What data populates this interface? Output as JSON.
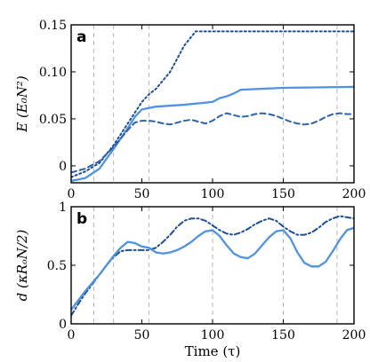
{
  "chart_data": [
    {
      "panel": "a",
      "type": "line",
      "ylabel": "E (E₀N²)",
      "xlabel": "",
      "xlim": [
        0,
        200
      ],
      "ylim": [
        -0.018,
        0.15
      ],
      "xticks": [
        0,
        50,
        100,
        150,
        200
      ],
      "xtick_labels": [
        "0",
        "50",
        "100",
        "150",
        "200"
      ],
      "yticks": [
        0,
        0.05,
        0.1,
        0.15
      ],
      "ytick_labels": [
        "0",
        "0.05",
        "0.10",
        "0.15"
      ],
      "vlines": [
        16,
        30,
        55,
        150,
        188
      ],
      "series": [
        {
          "style": "dotted",
          "color": "#1d4f96",
          "x": [
            0,
            10,
            20,
            30,
            40,
            50,
            55,
            60,
            70,
            80,
            88,
            95,
            100,
            150,
            200
          ],
          "y": [
            -0.012,
            -0.006,
            0.003,
            0.022,
            0.045,
            0.068,
            0.076,
            0.082,
            0.1,
            0.128,
            0.143,
            0.143,
            0.143,
            0.143,
            0.143
          ]
        },
        {
          "style": "solid",
          "color": "#4f92df",
          "x": [
            0,
            10,
            20,
            30,
            40,
            45,
            50,
            60,
            80,
            100,
            105,
            110,
            115,
            120,
            150,
            200
          ],
          "y": [
            -0.016,
            -0.013,
            -0.003,
            0.018,
            0.04,
            0.052,
            0.06,
            0.063,
            0.065,
            0.068,
            0.072,
            0.074,
            0.077,
            0.081,
            0.083,
            0.084
          ]
        },
        {
          "style": "dashed",
          "color": "#2d62ab",
          "x": [
            0,
            10,
            20,
            30,
            40,
            45,
            50,
            55,
            60,
            65,
            70,
            75,
            80,
            85,
            90,
            95,
            100,
            105,
            110,
            115,
            120,
            125,
            130,
            135,
            140,
            145,
            150,
            155,
            160,
            165,
            170,
            175,
            180,
            185,
            190,
            195,
            200
          ],
          "y": [
            -0.007,
            -0.003,
            0.005,
            0.02,
            0.038,
            0.046,
            0.048,
            0.048,
            0.047,
            0.045,
            0.044,
            0.046,
            0.048,
            0.049,
            0.047,
            0.045,
            0.048,
            0.053,
            0.056,
            0.054,
            0.052,
            0.053,
            0.055,
            0.056,
            0.055,
            0.053,
            0.05,
            0.047,
            0.045,
            0.044,
            0.045,
            0.048,
            0.052,
            0.055,
            0.056,
            0.055,
            0.055
          ]
        }
      ]
    },
    {
      "panel": "b",
      "type": "line",
      "ylabel": "d (κRₒN/2)",
      "xlabel": "Time (τ)",
      "xlim": [
        0,
        200
      ],
      "ylim": [
        0,
        1
      ],
      "xticks": [
        0,
        50,
        100,
        150,
        200
      ],
      "xtick_labels": [
        "0",
        "50",
        "100",
        "150",
        "200"
      ],
      "yticks": [
        0,
        0.5,
        1
      ],
      "ytick_labels": [
        "0",
        "0.5",
        "1"
      ],
      "vlines": [
        16,
        30,
        55,
        100,
        150,
        188
      ],
      "series": [
        {
          "style": "dashdot",
          "color": "#1d4f96",
          "x": [
            0,
            5,
            10,
            15,
            20,
            25,
            30,
            35,
            40,
            45,
            50,
            55,
            60,
            65,
            70,
            75,
            80,
            85,
            90,
            95,
            100,
            105,
            110,
            115,
            120,
            125,
            130,
            135,
            140,
            145,
            150,
            155,
            160,
            165,
            170,
            175,
            180,
            185,
            190,
            195,
            200
          ],
          "y": [
            0.07,
            0.17,
            0.26,
            0.34,
            0.42,
            0.5,
            0.57,
            0.62,
            0.63,
            0.63,
            0.63,
            0.63,
            0.65,
            0.7,
            0.76,
            0.83,
            0.88,
            0.9,
            0.9,
            0.88,
            0.84,
            0.8,
            0.77,
            0.76,
            0.78,
            0.81,
            0.85,
            0.88,
            0.9,
            0.88,
            0.83,
            0.79,
            0.76,
            0.76,
            0.78,
            0.82,
            0.87,
            0.9,
            0.92,
            0.91,
            0.9
          ]
        },
        {
          "style": "solid",
          "color": "#4f92df",
          "x": [
            0,
            5,
            10,
            15,
            20,
            25,
            30,
            35,
            40,
            45,
            50,
            55,
            60,
            65,
            70,
            75,
            80,
            85,
            90,
            95,
            100,
            105,
            110,
            115,
            120,
            125,
            130,
            135,
            140,
            145,
            150,
            155,
            160,
            165,
            170,
            175,
            180,
            185,
            190,
            195,
            200
          ],
          "y": [
            0.12,
            0.2,
            0.28,
            0.35,
            0.42,
            0.5,
            0.58,
            0.65,
            0.7,
            0.69,
            0.66,
            0.65,
            0.61,
            0.6,
            0.61,
            0.63,
            0.66,
            0.7,
            0.75,
            0.79,
            0.8,
            0.75,
            0.67,
            0.6,
            0.57,
            0.56,
            0.6,
            0.67,
            0.74,
            0.79,
            0.8,
            0.73,
            0.61,
            0.52,
            0.49,
            0.49,
            0.53,
            0.62,
            0.72,
            0.8,
            0.82
          ]
        }
      ]
    }
  ]
}
